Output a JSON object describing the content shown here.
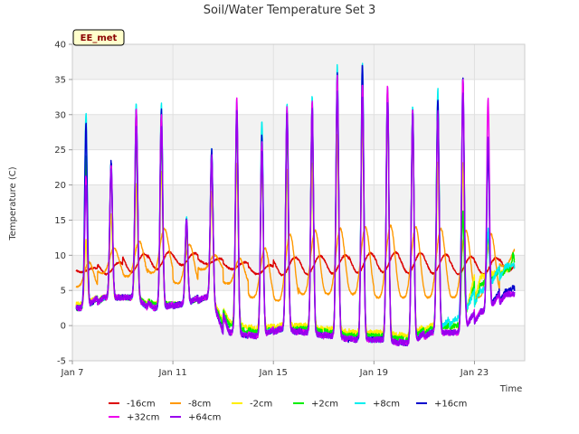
{
  "chart_data": {
    "type": "line",
    "title": "Soil/Water Temperature Set 3",
    "xlabel": "Time",
    "ylabel": "Temperature (C)",
    "badge": "EE_met",
    "ylim": [
      -5,
      40
    ],
    "yticks": [
      -5,
      0,
      5,
      10,
      15,
      20,
      25,
      30,
      35,
      40
    ],
    "xlim": [
      "2024-01-07",
      "2024-01-25"
    ],
    "xticks": [
      {
        "date": "2024-01-07",
        "label": "Jan 7"
      },
      {
        "date": "2024-01-11",
        "label": "Jan 11"
      },
      {
        "date": "2024-01-15",
        "label": "Jan 15"
      },
      {
        "date": "2024-01-19",
        "label": "Jan 19"
      },
      {
        "date": "2024-01-23",
        "label": "Jan 23"
      }
    ],
    "grid": true,
    "legend_position": "bottom",
    "days": [
      "2024-01-07",
      "2024-01-08",
      "2024-01-09",
      "2024-01-10",
      "2024-01-11",
      "2024-01-12",
      "2024-01-13",
      "2024-01-14",
      "2024-01-15",
      "2024-01-16",
      "2024-01-17",
      "2024-01-18",
      "2024-01-19",
      "2024-01-20",
      "2024-01-21",
      "2024-01-22",
      "2024-01-23",
      "2024-01-24"
    ],
    "daily_peak_hour": 13,
    "series": [
      {
        "name": "-16cm",
        "color": "#dd0000",
        "kind": "deep",
        "daily_max": [
          8.2,
          9.0,
          10.2,
          10.5,
          10.3,
          9.5,
          9.0,
          8.6,
          9.7,
          9.9,
          10.0,
          10.3,
          10.4,
          10.3,
          10.1,
          9.8,
          9.6,
          9.8
        ],
        "daily_min": [
          7.6,
          7.3,
          7.6,
          8.0,
          8.6,
          8.8,
          8.0,
          7.3,
          7.2,
          7.3,
          7.4,
          7.5,
          7.6,
          7.5,
          7.4,
          7.3,
          7.3,
          7.8
        ],
        "start_day": 0.15,
        "end_day": 17.6
      },
      {
        "name": "-8cm",
        "color": "#ff9900",
        "kind": "mid",
        "daily_max": [
          9.0,
          11.0,
          12.0,
          13.8,
          11.5,
          10.0,
          9.5,
          11.0,
          13.0,
          13.5,
          13.8,
          14.0,
          14.2,
          14.0,
          13.8,
          13.5,
          13.0,
          11.0
        ],
        "daily_min": [
          5.5,
          7.5,
          7.0,
          7.5,
          6.0,
          8.0,
          6.0,
          4.0,
          3.5,
          4.5,
          4.5,
          4.5,
          4.0,
          4.0,
          4.0,
          4.0,
          4.0,
          8.5
        ],
        "start_day": 0.15,
        "end_day": 17.6
      },
      {
        "name": "-2cm",
        "color": "#ffee00",
        "kind": "surface",
        "daily_max": [
          12.0,
          16.0,
          20.0,
          22.0,
          13.0,
          19.0,
          23.0,
          23.0,
          22.0,
          23.0,
          27.0,
          29.0,
          30.0,
          28.0,
          23.0,
          23.0,
          12.0,
          10.0
        ],
        "daily_min": [
          3.0,
          4.0,
          4.0,
          3.0,
          3.0,
          4.0,
          0.5,
          -0.5,
          0.0,
          0.0,
          -0.5,
          -1.0,
          -1.0,
          -1.5,
          0.0,
          0.0,
          7.0,
          8.0
        ],
        "start_day": 0.15,
        "end_day": 17.6
      },
      {
        "name": "+2cm",
        "color": "#00ee00",
        "kind": "surface",
        "daily_max": [
          24.0,
          22.0,
          26.0,
          26.0,
          14.0,
          24.0,
          29.0,
          24.0,
          27.0,
          29.0,
          33.0,
          33.0,
          32.0,
          30.0,
          32.0,
          16.0,
          13.0,
          10.0
        ],
        "daily_min": [
          2.5,
          4.0,
          4.0,
          3.0,
          3.0,
          4.0,
          0.0,
          -1.0,
          -0.5,
          -0.5,
          -1.0,
          -1.5,
          -1.5,
          -2.0,
          -0.5,
          0.0,
          6.0,
          8.0
        ],
        "start_day": 0.15,
        "end_day": 17.6
      },
      {
        "name": "+8cm",
        "color": "#00eeee",
        "kind": "surface",
        "daily_max": [
          30.0,
          23.5,
          31.5,
          31.5,
          15.5,
          25.0,
          32.0,
          29.0,
          31.5,
          32.5,
          37.0,
          37.5,
          34.0,
          31.0,
          33.5,
          35.0,
          13.5,
          8.5
        ],
        "daily_min": [
          2.5,
          4.0,
          4.0,
          2.5,
          3.0,
          4.0,
          -1.0,
          -1.5,
          -0.5,
          -1.0,
          -1.5,
          -2.0,
          -2.0,
          -2.5,
          -1.0,
          1.0,
          5.0,
          8.5
        ],
        "start_day": 0.15,
        "end_day": 17.6
      },
      {
        "name": "+16cm",
        "color": "#0000cc",
        "kind": "surface",
        "daily_max": [
          28.5,
          23.5,
          30.5,
          30.5,
          15.0,
          25.0,
          31.0,
          27.0,
          30.5,
          31.5,
          36.0,
          37.0,
          33.5,
          30.5,
          32.5,
          35.0,
          24.5,
          5.5
        ],
        "daily_min": [
          2.5,
          4.0,
          4.0,
          2.5,
          3.0,
          4.0,
          -1.0,
          -1.5,
          -0.5,
          -1.0,
          -1.5,
          -2.0,
          -2.0,
          -2.5,
          -1.0,
          -1.0,
          2.0,
          5.0
        ],
        "start_day": 0.15,
        "end_day": 17.6
      },
      {
        "name": "+32cm",
        "color": "#ee00ee",
        "kind": "surface",
        "daily_max": [
          21.0,
          23.0,
          30.5,
          30.0,
          15.0,
          24.0,
          32.5,
          26.0,
          31.0,
          32.0,
          35.5,
          34.5,
          34.0,
          30.5,
          30.0,
          35.5,
          32.5,
          4.5
        ],
        "daily_min": [
          2.5,
          4.0,
          4.0,
          2.5,
          3.0,
          4.0,
          -1.0,
          -1.5,
          -0.5,
          -1.0,
          -1.5,
          -2.0,
          -2.0,
          -2.5,
          -1.0,
          -1.0,
          2.0,
          4.5
        ],
        "start_day": 0.15,
        "end_day": 17.6
      },
      {
        "name": "+64cm",
        "color": "#9900ee",
        "kind": "surface",
        "daily_max": [
          20.0,
          22.5,
          28.0,
          28.0,
          15.0,
          24.0,
          31.0,
          25.0,
          30.0,
          31.0,
          33.5,
          33.0,
          32.0,
          30.0,
          30.5,
          33.0,
          27.0,
          4.5
        ],
        "daily_min": [
          2.5,
          4.0,
          4.0,
          2.5,
          3.0,
          4.0,
          -1.0,
          -1.5,
          -0.5,
          -1.0,
          -1.5,
          -2.0,
          -2.0,
          -2.5,
          -1.0,
          -1.0,
          2.0,
          4.5
        ],
        "start_day": 0.15,
        "end_day": 17.6
      }
    ]
  }
}
